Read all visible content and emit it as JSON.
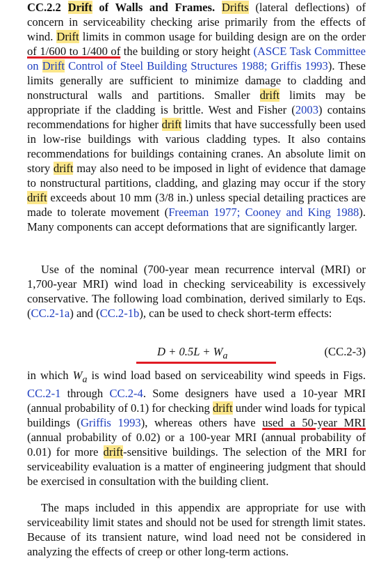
{
  "section": {
    "number": "CC.2.2",
    "title_a": "Drift",
    "title_b": "of Walls and Frames."
  },
  "p1": {
    "s1": "Drifts",
    "s2": "(lateral deflections) of concern in serviceability checking arise primarily from the effects of wind.",
    "s3": "Drift",
    "s4": "limits in common usage for building design are on the order",
    "s5": "of 1/600 to 1/400 of",
    "s6": "the building or story height",
    "s7": "(ASCE Task Committee on",
    "s8": "Drift",
    "s9": "Control of Steel Building Structures 1988;",
    "s10": "Griffis 1993",
    "s11": "). These limits generally are sufficient to minimize damage to cladding and nonstructural walls and partitions. Smaller",
    "s12": "drift",
    "s13": "limits may be appropriate if the cladding is brittle. West and Fisher (",
    "s14": "2003",
    "s15": ") contains recommendations for higher",
    "s16": "drift",
    "s17": "limits that have successfully been used in low-rise buildings with various cladding types. It also contains recommendations for buildings containing cranes. An absolute limit on story",
    "s18": "drift",
    "s19": "may also need to be imposed in light of evidence that damage to nonstructural partitions, cladding, and glazing may occur if the story",
    "s20": "drift",
    "s21": "exceeds about 10 mm (3/8 in.) unless special detailing practices are made to tolerate movement (",
    "s22": "Freeman 1977",
    "s23": ";",
    "s24": "Cooney and King 1988",
    "s25": "). Many components can accept deformations that are significantly larger."
  },
  "p2": {
    "s1": "Use of the nominal (700-year mean recurrence interval (MRI) or 1,700-year MRI) wind load in checking serviceability is excessively conservative. The following load combination, derived similarly to Eqs. (",
    "s2": "CC.2-1a",
    "s3": ") and (",
    "s4": "CC.2-1b",
    "s5": "), can be used to check short-term effects:"
  },
  "equation": {
    "expr": "D + 0.5L + W",
    "subscript": "a",
    "number": "(CC.2-3)"
  },
  "p3": {
    "s1": "in which",
    "s2": "W",
    "s3": "a",
    "s4": "is wind load based on serviceability wind speeds in Figs.",
    "s5": "CC.2-1",
    "s6": "through",
    "s7": "CC.2-4",
    "s8": ". Some designers have used a 10-year MRI (annual probability of 0.1) for checking",
    "s9": "drift",
    "s10": "under wind loads for typical buildings (",
    "s11": "Griffis 1993",
    "s12": "), whereas others have",
    "s13": "used a 50-year MRI",
    "s14": "(annual probability of 0.02) or a 100-year MRI (annual probability of 0.01) for more",
    "s15": "drift",
    "s16": "-sensitive buildings. The selection of the MRI for serviceability evaluation is a matter of engineering judgment that should be exercised in consultation with the building client."
  },
  "p4": {
    "text": "The maps included in this appendix are appropriate for use with serviceability limit states and should not be used for strength limit states. Because of its transient nature, wind load need not be considered in analyzing the effects of creep or other long-term actions."
  },
  "colors": {
    "highlight": "#fbe68a",
    "link": "#1f3fbf",
    "annotation": "#e01b24"
  }
}
